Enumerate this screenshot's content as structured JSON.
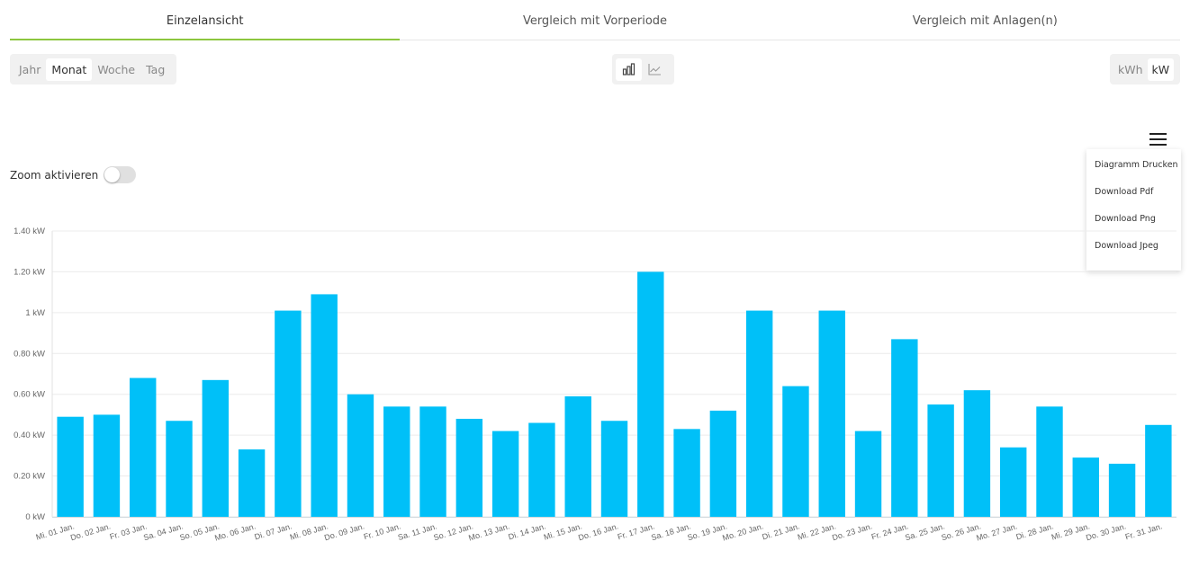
{
  "tabs": [
    {
      "label": "Einzelansicht",
      "active": true
    },
    {
      "label": "Vergleich mit Vorperiode",
      "active": false
    },
    {
      "label": "Vergleich mit Anlagen(n)",
      "active": false
    }
  ],
  "period_options": [
    "Jahr",
    "Monat",
    "Woche",
    "Tag"
  ],
  "period_selected": "Monat",
  "view_options": [
    {
      "icon": "bar-chart-icon",
      "selected": true
    },
    {
      "icon": "line-chart-icon",
      "selected": false
    }
  ],
  "unit_options": [
    "kWh",
    "kW"
  ],
  "unit_selected": "kW",
  "zoom": {
    "label": "Zoom aktivieren",
    "enabled": false
  },
  "menu": {
    "icon": "hamburger-icon",
    "items": [
      "Diagramm Drucken",
      "Download Pdf",
      "Download Png",
      "Download Jpeg"
    ]
  },
  "colors": {
    "bar": "#00c0f8",
    "accent": "#8cc63f",
    "grid": "#ececec"
  },
  "chart_data": {
    "type": "bar",
    "categories": [
      "Mi. 01 Jan.",
      "Do. 02 Jan.",
      "Fr. 03 Jan.",
      "Sa. 04 Jan.",
      "So. 05 Jan.",
      "Mo. 06 Jan.",
      "Di. 07 Jan.",
      "Mi. 08 Jan.",
      "Do. 09 Jan.",
      "Fr. 10 Jan.",
      "Sa. 11 Jan.",
      "So. 12 Jan.",
      "Mo. 13 Jan.",
      "Di. 14 Jan.",
      "Mi. 15 Jan.",
      "Do. 16 Jan.",
      "Fr. 17 Jan.",
      "Sa. 18 Jan.",
      "So. 19 Jan.",
      "Mo. 20 Jan.",
      "Di. 21 Jan.",
      "Mi. 22 Jan.",
      "Do. 23 Jan.",
      "Fr. 24 Jan.",
      "Sa. 25 Jan.",
      "So. 26 Jan.",
      "Mo. 27 Jan.",
      "Di. 28 Jan.",
      "Mi. 29 Jan.",
      "Do. 30 Jan.",
      "Fr. 31 Jan."
    ],
    "values": [
      0.49,
      0.5,
      0.68,
      0.47,
      0.67,
      0.33,
      1.01,
      1.09,
      0.6,
      0.54,
      0.54,
      0.48,
      0.42,
      0.46,
      0.59,
      0.47,
      1.2,
      0.43,
      0.52,
      1.01,
      0.64,
      1.01,
      0.42,
      0.87,
      0.55,
      0.62,
      0.34,
      0.54,
      0.29,
      0.26,
      0.45
    ],
    "ylim": [
      0,
      1.4
    ],
    "yticks": [
      0,
      0.2,
      0.4,
      0.6,
      0.8,
      1,
      1.2,
      1.4
    ],
    "ytick_labels": [
      "0 kW",
      "0.20 kW",
      "0.40 kW",
      "0.60 kW",
      "0.80 kW",
      "1 kW",
      "1.20 kW",
      "1.40 kW"
    ],
    "grid": true,
    "legend": "none"
  }
}
